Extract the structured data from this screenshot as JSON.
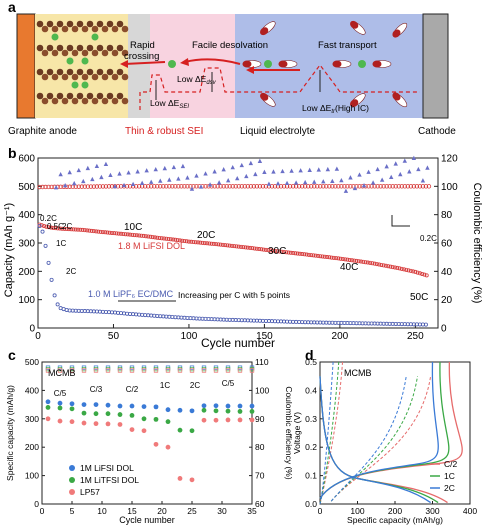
{
  "panel_a": {
    "letter": "a",
    "labels": {
      "rapid": "Rapid",
      "crossing": "crossing",
      "facile": "Facile desolvation",
      "fast": "Fast transport",
      "sei_energy": "Low ΔE",
      "sei_sub": "SEI",
      "dsv_energy": "Low ΔE",
      "dsv_sub": "dsv",
      "tr_energy": "Low ΔE",
      "tr_sub": "tr",
      "tr_suffix": "(High IC)",
      "graphite": "Graphite anode",
      "sei": "Thin & robust SEI",
      "electrolyte": "Liquid electrolyte",
      "cathode": "Cathode"
    },
    "colors": {
      "anode": "#e8792f",
      "sei": "#f4c6d6",
      "electrolyte": "#aebde8",
      "cathode": "#a9a9a9",
      "arrow": "#d62020"
    }
  },
  "panel_b": {
    "letter": "b",
    "ylabel": "Capacity (mAh g⁻¹)",
    "y2label": "Coulombic efficiency (%)",
    "xlabel": "Cycle number",
    "xticks": [
      "0",
      "50",
      "100",
      "150",
      "200",
      "250"
    ],
    "yticks": [
      "0",
      "100",
      "200",
      "300",
      "400",
      "500",
      "600"
    ],
    "y2ticks": [
      "0",
      "20",
      "40",
      "60",
      "80",
      "100",
      "120"
    ],
    "annotations": {
      "c02": "0.2C",
      "c05": "0.5C",
      "c2a": "2C",
      "c1": "1C",
      "c2b": "2C",
      "c10": "10C",
      "c20": "20C",
      "c30": "30C",
      "c40": "40C",
      "c50": "50C",
      "c02b": "0.2C",
      "lifsi": "1.8 M LiFSI DOL",
      "lipf6": "1.0 M LiPF₆ EC/DMC",
      "increase": "Increasing per C with 5 points"
    },
    "chart_data": {
      "type": "scatter",
      "xlim": [
        0,
        265
      ],
      "ylim": [
        0,
        600
      ],
      "y2lim": [
        0,
        120
      ],
      "series": [
        {
          "name": "1.8 M LiFSI DOL",
          "color": "#d63a3a",
          "x": [
            1,
            3,
            5,
            8,
            12,
            20,
            30,
            40,
            50,
            60,
            70,
            80,
            90,
            100,
            120,
            140,
            160,
            180,
            200,
            220,
            240,
            250,
            258
          ],
          "y": [
            365,
            362,
            358,
            355,
            352,
            349,
            346,
            340,
            335,
            330,
            325,
            318,
            312,
            305,
            295,
            283,
            270,
            258,
            245,
            230,
            210,
            198,
            185
          ]
        },
        {
          "name": "1.0 M LiPF₆ EC/DMC",
          "color": "#4a5bb0",
          "x": [
            1,
            3,
            5,
            8,
            10,
            12,
            15,
            20,
            30,
            40,
            50,
            60,
            80,
            100,
            120,
            150,
            180,
            200,
            220,
            240,
            258
          ],
          "y": [
            360,
            340,
            290,
            200,
            140,
            90,
            70,
            62,
            60,
            58,
            55,
            50,
            42,
            35,
            30,
            25,
            20,
            18,
            16,
            14,
            12
          ]
        },
        {
          "name": "CE LiFSI",
          "color": "#d63a3a",
          "axis": "y2",
          "x": [
            0,
            50,
            100,
            150,
            200,
            250,
            260
          ],
          "y": [
            99.5,
            100,
            100,
            100,
            100,
            100,
            100
          ]
        },
        {
          "name": "CE LiPF₆",
          "color": "#6a6fc7",
          "axis": "y2",
          "x": [
            10,
            50,
            100,
            150,
            200,
            250
          ],
          "y": [
            105,
            108,
            106,
            110,
            104,
            112
          ]
        }
      ]
    }
  },
  "panel_c": {
    "letter": "c",
    "title": "MCMB",
    "ylabel": "Specific capacity (mAh/g)",
    "y2label": "Coulombic efficiency (%)",
    "xlabel": "Cycle number",
    "xticks": [
      "0",
      "5",
      "10",
      "15",
      "20",
      "25",
      "30",
      "35"
    ],
    "yticks": [
      "0",
      "100",
      "200",
      "300",
      "400",
      "500"
    ],
    "y2ticks": [
      "60",
      "70",
      "80",
      "90",
      "100",
      "110"
    ],
    "rates": [
      "C/5",
      "C/3",
      "C/2",
      "1C",
      "2C",
      "C/5"
    ],
    "legend": [
      "1M LiFSI DOL",
      "1M LiTFSI DOL",
      "LP57"
    ],
    "chart_data": {
      "type": "scatter",
      "xlim": [
        0,
        35
      ],
      "ylim": [
        0,
        500
      ],
      "series": [
        {
          "name": "1M LiFSI DOL",
          "color": "#3a7ad6",
          "x": [
            1,
            3,
            5,
            7,
            9,
            11,
            13,
            15,
            17,
            19,
            21,
            23,
            25,
            27,
            29,
            31,
            33,
            35
          ],
          "y": [
            360,
            355,
            353,
            350,
            350,
            348,
            345,
            345,
            343,
            342,
            332,
            330,
            328,
            346,
            346,
            345,
            345,
            345
          ]
        },
        {
          "name": "1M LiTFSI DOL",
          "color": "#3aa845",
          "x": [
            1,
            3,
            5,
            7,
            9,
            11,
            13,
            15,
            17,
            19,
            21,
            23,
            25,
            27,
            29,
            31,
            33,
            35
          ],
          "y": [
            340,
            338,
            335,
            320,
            318,
            318,
            315,
            312,
            300,
            298,
            290,
            260,
            258,
            330,
            328,
            327,
            326,
            326
          ]
        },
        {
          "name": "LP57",
          "color": "#f07a7a",
          "x": [
            1,
            3,
            5,
            7,
            9,
            11,
            13,
            15,
            17,
            19,
            21,
            23,
            25,
            27,
            29,
            31,
            33,
            35
          ],
          "y": [
            300,
            292,
            290,
            285,
            283,
            282,
            280,
            262,
            258,
            210,
            200,
            90,
            85,
            295,
            295,
            296,
            296,
            296
          ]
        }
      ]
    }
  },
  "panel_d": {
    "letter": "d",
    "title": "MCMB",
    "ylabel": "Voltage (V)",
    "xlabel": "Specific capacity (mAh/g)",
    "xticks": [
      "0",
      "100",
      "200",
      "300",
      "400"
    ],
    "yticks": [
      "0.0",
      "0.1",
      "0.2",
      "0.3",
      "0.4",
      "0.5"
    ],
    "legend": [
      "C/2",
      "1C",
      "2C"
    ],
    "chart_data": {
      "type": "line",
      "xlim": [
        0,
        400
      ],
      "ylim": [
        0,
        0.5
      ],
      "series": [
        {
          "name": "C/2",
          "color": "#e66b6b"
        },
        {
          "name": "1C",
          "color": "#3aa845"
        },
        {
          "name": "2C",
          "color": "#3a7ad6"
        }
      ]
    }
  }
}
